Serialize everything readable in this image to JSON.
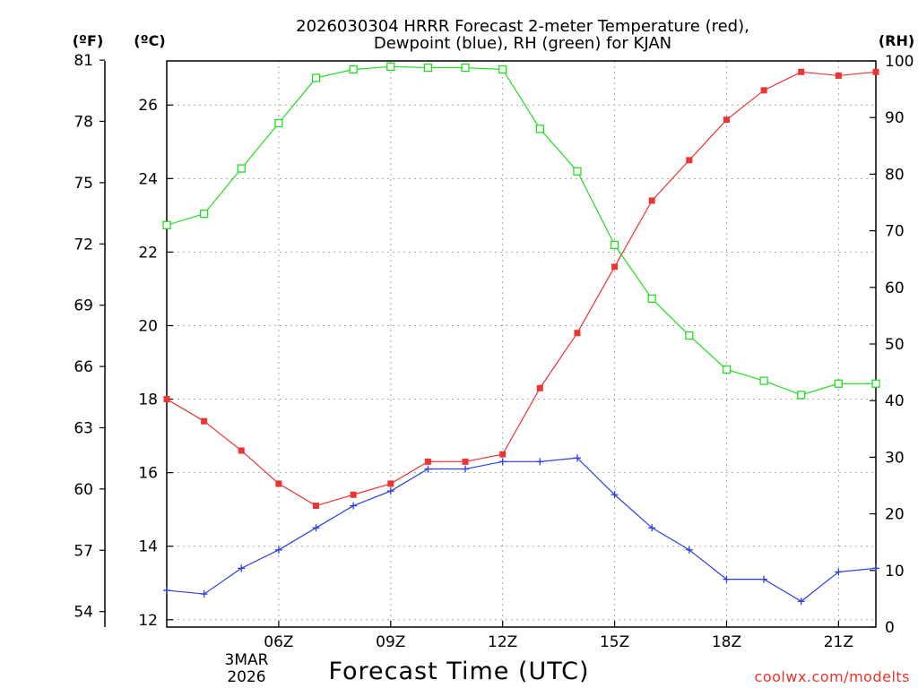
{
  "chart_data": {
    "type": "line",
    "title": "2026030304 HRRR Forecast 2-meter Temperature (red),",
    "subtitle": "Dewpoint (blue), RH (green) for KJAN",
    "xlabel": "Forecast Time (UTC)",
    "credit": "coolwx.com/modelts",
    "date_label": [
      "3MAR",
      "2026"
    ],
    "x_range": [
      3,
      22
    ],
    "x_ticks": [
      {
        "x": 6,
        "label": "06Z"
      },
      {
        "x": 9,
        "label": "09Z"
      },
      {
        "x": 12,
        "label": "12Z"
      },
      {
        "x": 15,
        "label": "15Z"
      },
      {
        "x": 18,
        "label": "18Z"
      },
      {
        "x": 21,
        "label": "21Z"
      }
    ],
    "axes": {
      "celsius": {
        "label": "(ºC)",
        "range": [
          11.8,
          27.2
        ],
        "ticks": [
          "12",
          "14",
          "16",
          "18",
          "20",
          "22",
          "24",
          "26"
        ]
      },
      "fahrenheit": {
        "label": "(ºF)",
        "ticks": [
          "54",
          "57",
          "60",
          "63",
          "66",
          "69",
          "72",
          "75",
          "78",
          "81"
        ]
      },
      "rh": {
        "label": "(RH)",
        "range": [
          0,
          100
        ],
        "ticks": [
          "0",
          "10",
          "20",
          "30",
          "40",
          "50",
          "60",
          "70",
          "80",
          "90",
          "100"
        ]
      }
    },
    "x": [
      3,
      4,
      5,
      6,
      7,
      8,
      9,
      10,
      11,
      12,
      13,
      14,
      15,
      16,
      17,
      18,
      19,
      20,
      21,
      22
    ],
    "series": [
      {
        "name": "Temperature",
        "axis": "celsius",
        "color": "#ee3333",
        "marker": "filled-square",
        "values": [
          18.0,
          17.4,
          16.6,
          15.7,
          15.1,
          15.4,
          15.7,
          16.3,
          16.3,
          16.5,
          18.3,
          19.8,
          21.6,
          23.4,
          24.5,
          25.6,
          26.4,
          26.9,
          26.8,
          26.9
        ]
      },
      {
        "name": "Dewpoint",
        "axis": "celsius",
        "color": "#2b3fe0",
        "marker": "plus",
        "values": [
          12.8,
          12.7,
          13.4,
          13.9,
          14.5,
          15.1,
          15.5,
          16.1,
          16.1,
          16.3,
          16.3,
          16.4,
          15.4,
          14.5,
          13.9,
          13.1,
          13.1,
          12.5,
          13.3,
          13.4
        ]
      },
      {
        "name": "RH",
        "axis": "rh",
        "color": "#22dd22",
        "marker": "open-square",
        "values": [
          71,
          73,
          81,
          89,
          97,
          98.5,
          99,
          98.8,
          98.8,
          98.5,
          88,
          80.5,
          67.5,
          58,
          51.5,
          45.5,
          43.5,
          41,
          43,
          43
        ]
      }
    ]
  }
}
